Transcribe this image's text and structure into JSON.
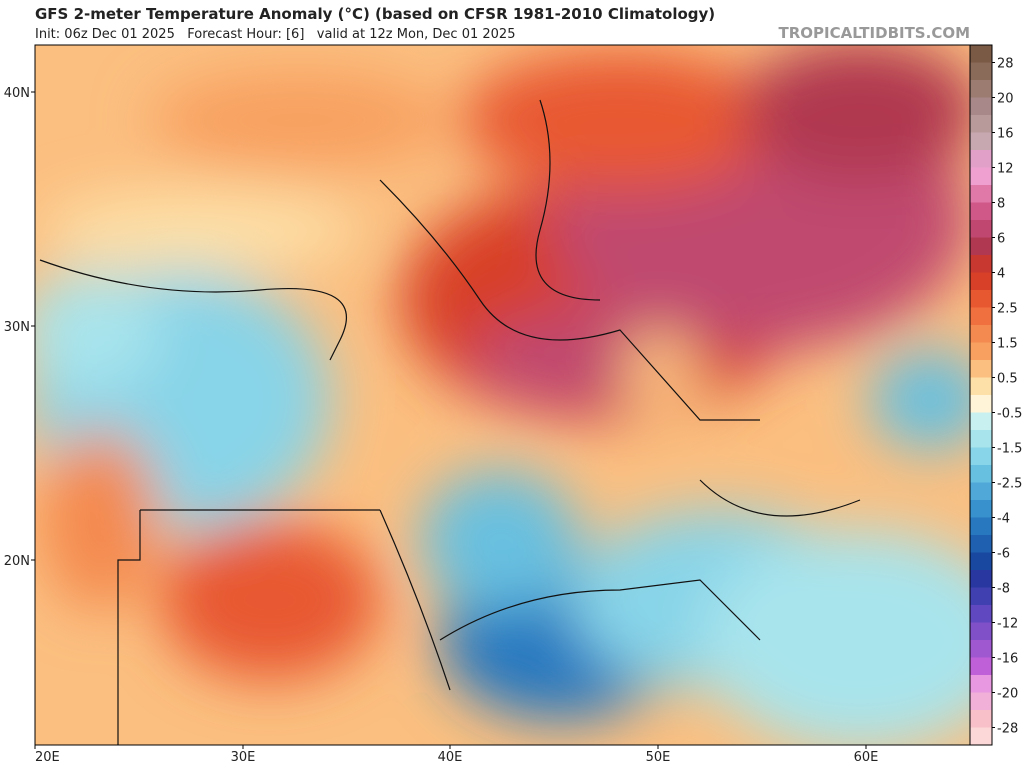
{
  "header": {
    "title": "GFS 2-meter Temperature Anomaly (°C) (based on CFSR 1981-2010 Climatology)",
    "subtitle": "Init: 06z Dec 01 2025   Forecast Hour: [6]   valid at 12z Mon, Dec 01 2025",
    "site": "TROPICALTIDBITS.COM"
  },
  "map": {
    "lon_labels": [
      "20E",
      "30E",
      "40E",
      "50E",
      "60E"
    ],
    "lat_labels": [
      "40N",
      "30N",
      "20N"
    ]
  },
  "colorbar": {
    "labels": [
      "28",
      "20",
      "16",
      "12",
      "8",
      "6",
      "4",
      "2.5",
      "1.5",
      "0.5",
      "-0.5",
      "-1.5",
      "-2.5",
      "-4",
      "-6",
      "-8",
      "-12",
      "-16",
      "-20",
      "-28"
    ],
    "colors": [
      "#7a5a44",
      "#8a6a58",
      "#9c7c70",
      "#a88888",
      "#b89a9a",
      "#c8a8b0",
      "#e0a0c8",
      "#f0a0d0",
      "#e078a8",
      "#d05888",
      "#c04870",
      "#b03850",
      "#c83830",
      "#d84028",
      "#e85830",
      "#f07040",
      "#f48a50",
      "#f8a060",
      "#fbbf80",
      "#fde0a8",
      "#fff4d8",
      "#c8f0f0",
      "#a8e4ec",
      "#88d4e8",
      "#68c0e0",
      "#50a8d8",
      "#3890cc",
      "#2878c0",
      "#2060b0",
      "#1848a0",
      "#2838a0",
      "#4040b0",
      "#6048c0",
      "#8050c8",
      "#a058d0",
      "#c060d8",
      "#e898e0",
      "#f0b0d8",
      "#f8c0c8",
      "#fcd8d8"
    ]
  }
}
